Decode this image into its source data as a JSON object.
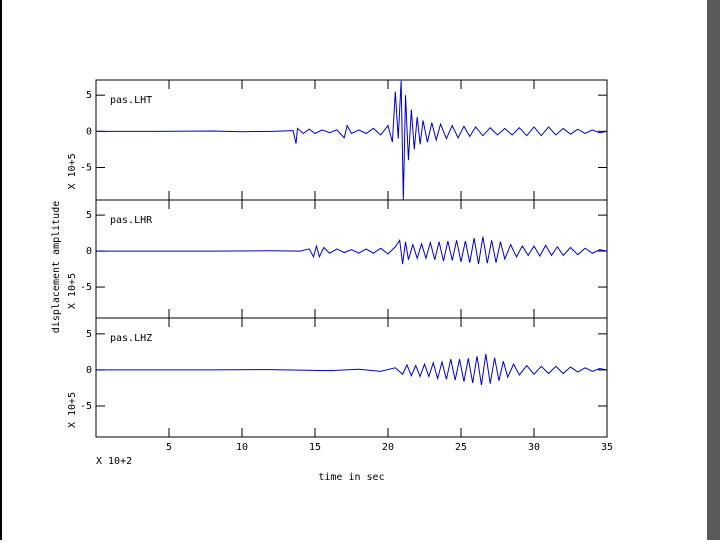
{
  "chart_data": [
    {
      "type": "line",
      "label": "pas.LHT",
      "y_multiplier": "X 10+5",
      "color": "#0000cc",
      "xlim": [
        0,
        35
      ],
      "ylim": [
        -9.5,
        7.1
      ],
      "xticks": [
        5,
        10,
        15,
        20,
        25,
        30,
        35
      ],
      "yticks": [
        -5,
        0,
        5
      ],
      "x": [
        0,
        4,
        8,
        10,
        12,
        13.5,
        13.7,
        13.8,
        14.2,
        14.6,
        15,
        15.5,
        16,
        16.5,
        17,
        17.2,
        17.5,
        18,
        18.5,
        19,
        19.5,
        20,
        20.3,
        20.5,
        20.7,
        20.9,
        21.05,
        21.2,
        21.4,
        21.6,
        21.8,
        22,
        22.2,
        22.4,
        22.7,
        23,
        23.3,
        23.6,
        24,
        24.4,
        24.8,
        25.2,
        25.6,
        26,
        26.5,
        27,
        27.5,
        28,
        28.5,
        29,
        29.5,
        30,
        30.5,
        31,
        31.5,
        32,
        32.5,
        33,
        33.5,
        34,
        34.5,
        35
      ],
      "values": [
        0,
        0,
        0.05,
        -0.05,
        0,
        0.1,
        -1.7,
        0.4,
        -0.3,
        0.3,
        -0.3,
        0.2,
        -0.2,
        0.2,
        -0.9,
        0.8,
        -0.3,
        0.2,
        -0.3,
        0.4,
        -0.5,
        0.8,
        -1.5,
        5.5,
        -1,
        7,
        -9.5,
        5,
        -4,
        3,
        -2.5,
        2,
        -1.8,
        1.5,
        -1.5,
        1.2,
        -1.2,
        1,
        -1,
        0.8,
        -0.9,
        0.7,
        -0.7,
        0.6,
        -0.6,
        0.5,
        -0.5,
        0.4,
        -0.5,
        0.5,
        -0.6,
        0.6,
        -0.6,
        0.6,
        -0.5,
        0.4,
        -0.4,
        0.3,
        -0.3,
        0.2,
        -0.2,
        0
      ]
    },
    {
      "type": "line",
      "label": "pas.LHR",
      "y_multiplier": "X 10+5",
      "ylabel": "displacement amplitude",
      "color": "#0000cc",
      "xlim": [
        0,
        35
      ],
      "ylim": [
        -9.3,
        7.1
      ],
      "xticks": [
        5,
        10,
        15,
        20,
        25,
        30,
        35
      ],
      "yticks": [
        -5,
        0,
        5
      ],
      "x": [
        0,
        8,
        12,
        14,
        14.6,
        14.9,
        15.1,
        15.3,
        15.6,
        16,
        16.5,
        17,
        17.5,
        18,
        18.5,
        19,
        19.5,
        20,
        20.5,
        20.8,
        21,
        21.2,
        21.4,
        21.7,
        22,
        22.3,
        22.6,
        22.9,
        23.2,
        23.5,
        23.8,
        24.1,
        24.4,
        24.7,
        25,
        25.3,
        25.6,
        25.9,
        26.2,
        26.5,
        26.8,
        27.1,
        27.4,
        27.7,
        28,
        28.4,
        28.8,
        29.2,
        29.6,
        30,
        30.4,
        30.8,
        31.2,
        31.6,
        32,
        32.5,
        33,
        33.5,
        34,
        34.5,
        35
      ],
      "values": [
        0,
        0,
        0.05,
        0,
        0.3,
        -0.8,
        0.7,
        -0.8,
        0.5,
        -0.3,
        0.3,
        -0.2,
        0.2,
        -0.3,
        0.3,
        -0.3,
        0.4,
        -0.4,
        0.6,
        1.5,
        -1.8,
        1.3,
        -1.2,
        0.9,
        -1,
        1,
        -1,
        1.2,
        -1.2,
        1.3,
        -1.4,
        1.4,
        -1.3,
        1.5,
        -1.5,
        1.4,
        -1.6,
        1.8,
        -1.8,
        2,
        -1.7,
        1.5,
        -1.6,
        1.3,
        -1.1,
        0.9,
        -0.8,
        0.7,
        -0.6,
        0.7,
        -0.7,
        0.8,
        -0.6,
        0.6,
        -0.6,
        0.5,
        -0.5,
        0.4,
        -0.3,
        0.2,
        0
      ]
    },
    {
      "type": "line",
      "label": "pas.LHZ",
      "y_multiplier": "X 10+5",
      "x_multiplier": "X 10+2",
      "xlabel": "time in sec",
      "color": "#0000cc",
      "xlim": [
        0,
        35
      ],
      "ylim": [
        -9.3,
        7.2
      ],
      "xticks": [
        5,
        10,
        15,
        20,
        25,
        30,
        35
      ],
      "yticks": [
        -5,
        0,
        5
      ],
      "x": [
        0,
        8,
        12,
        16,
        18,
        19.5,
        20.5,
        21,
        21.3,
        21.6,
        21.9,
        22.2,
        22.5,
        22.8,
        23.1,
        23.4,
        23.7,
        24,
        24.3,
        24.6,
        24.9,
        25.2,
        25.5,
        25.8,
        26.1,
        26.4,
        26.7,
        27,
        27.3,
        27.6,
        27.9,
        28.2,
        28.6,
        29,
        29.5,
        30,
        30.5,
        31,
        31.5,
        32,
        32.5,
        33,
        33.5,
        34,
        34.5,
        35
      ],
      "values": [
        0,
        0,
        0.05,
        -0.1,
        0.1,
        -0.2,
        0.3,
        -0.6,
        0.7,
        -0.8,
        0.6,
        -0.9,
        0.8,
        -0.9,
        1,
        -1.2,
        1.1,
        -1.3,
        1.5,
        -1.4,
        1.5,
        -1.6,
        1.6,
        -1.8,
        1.9,
        -2.1,
        2.2,
        -1.9,
        1.7,
        -1.5,
        1.2,
        -1,
        0.8,
        -0.7,
        0.6,
        -0.6,
        0.5,
        -0.5,
        0.5,
        -0.5,
        0.4,
        -0.3,
        0.3,
        -0.2,
        0.2,
        0
      ]
    }
  ]
}
